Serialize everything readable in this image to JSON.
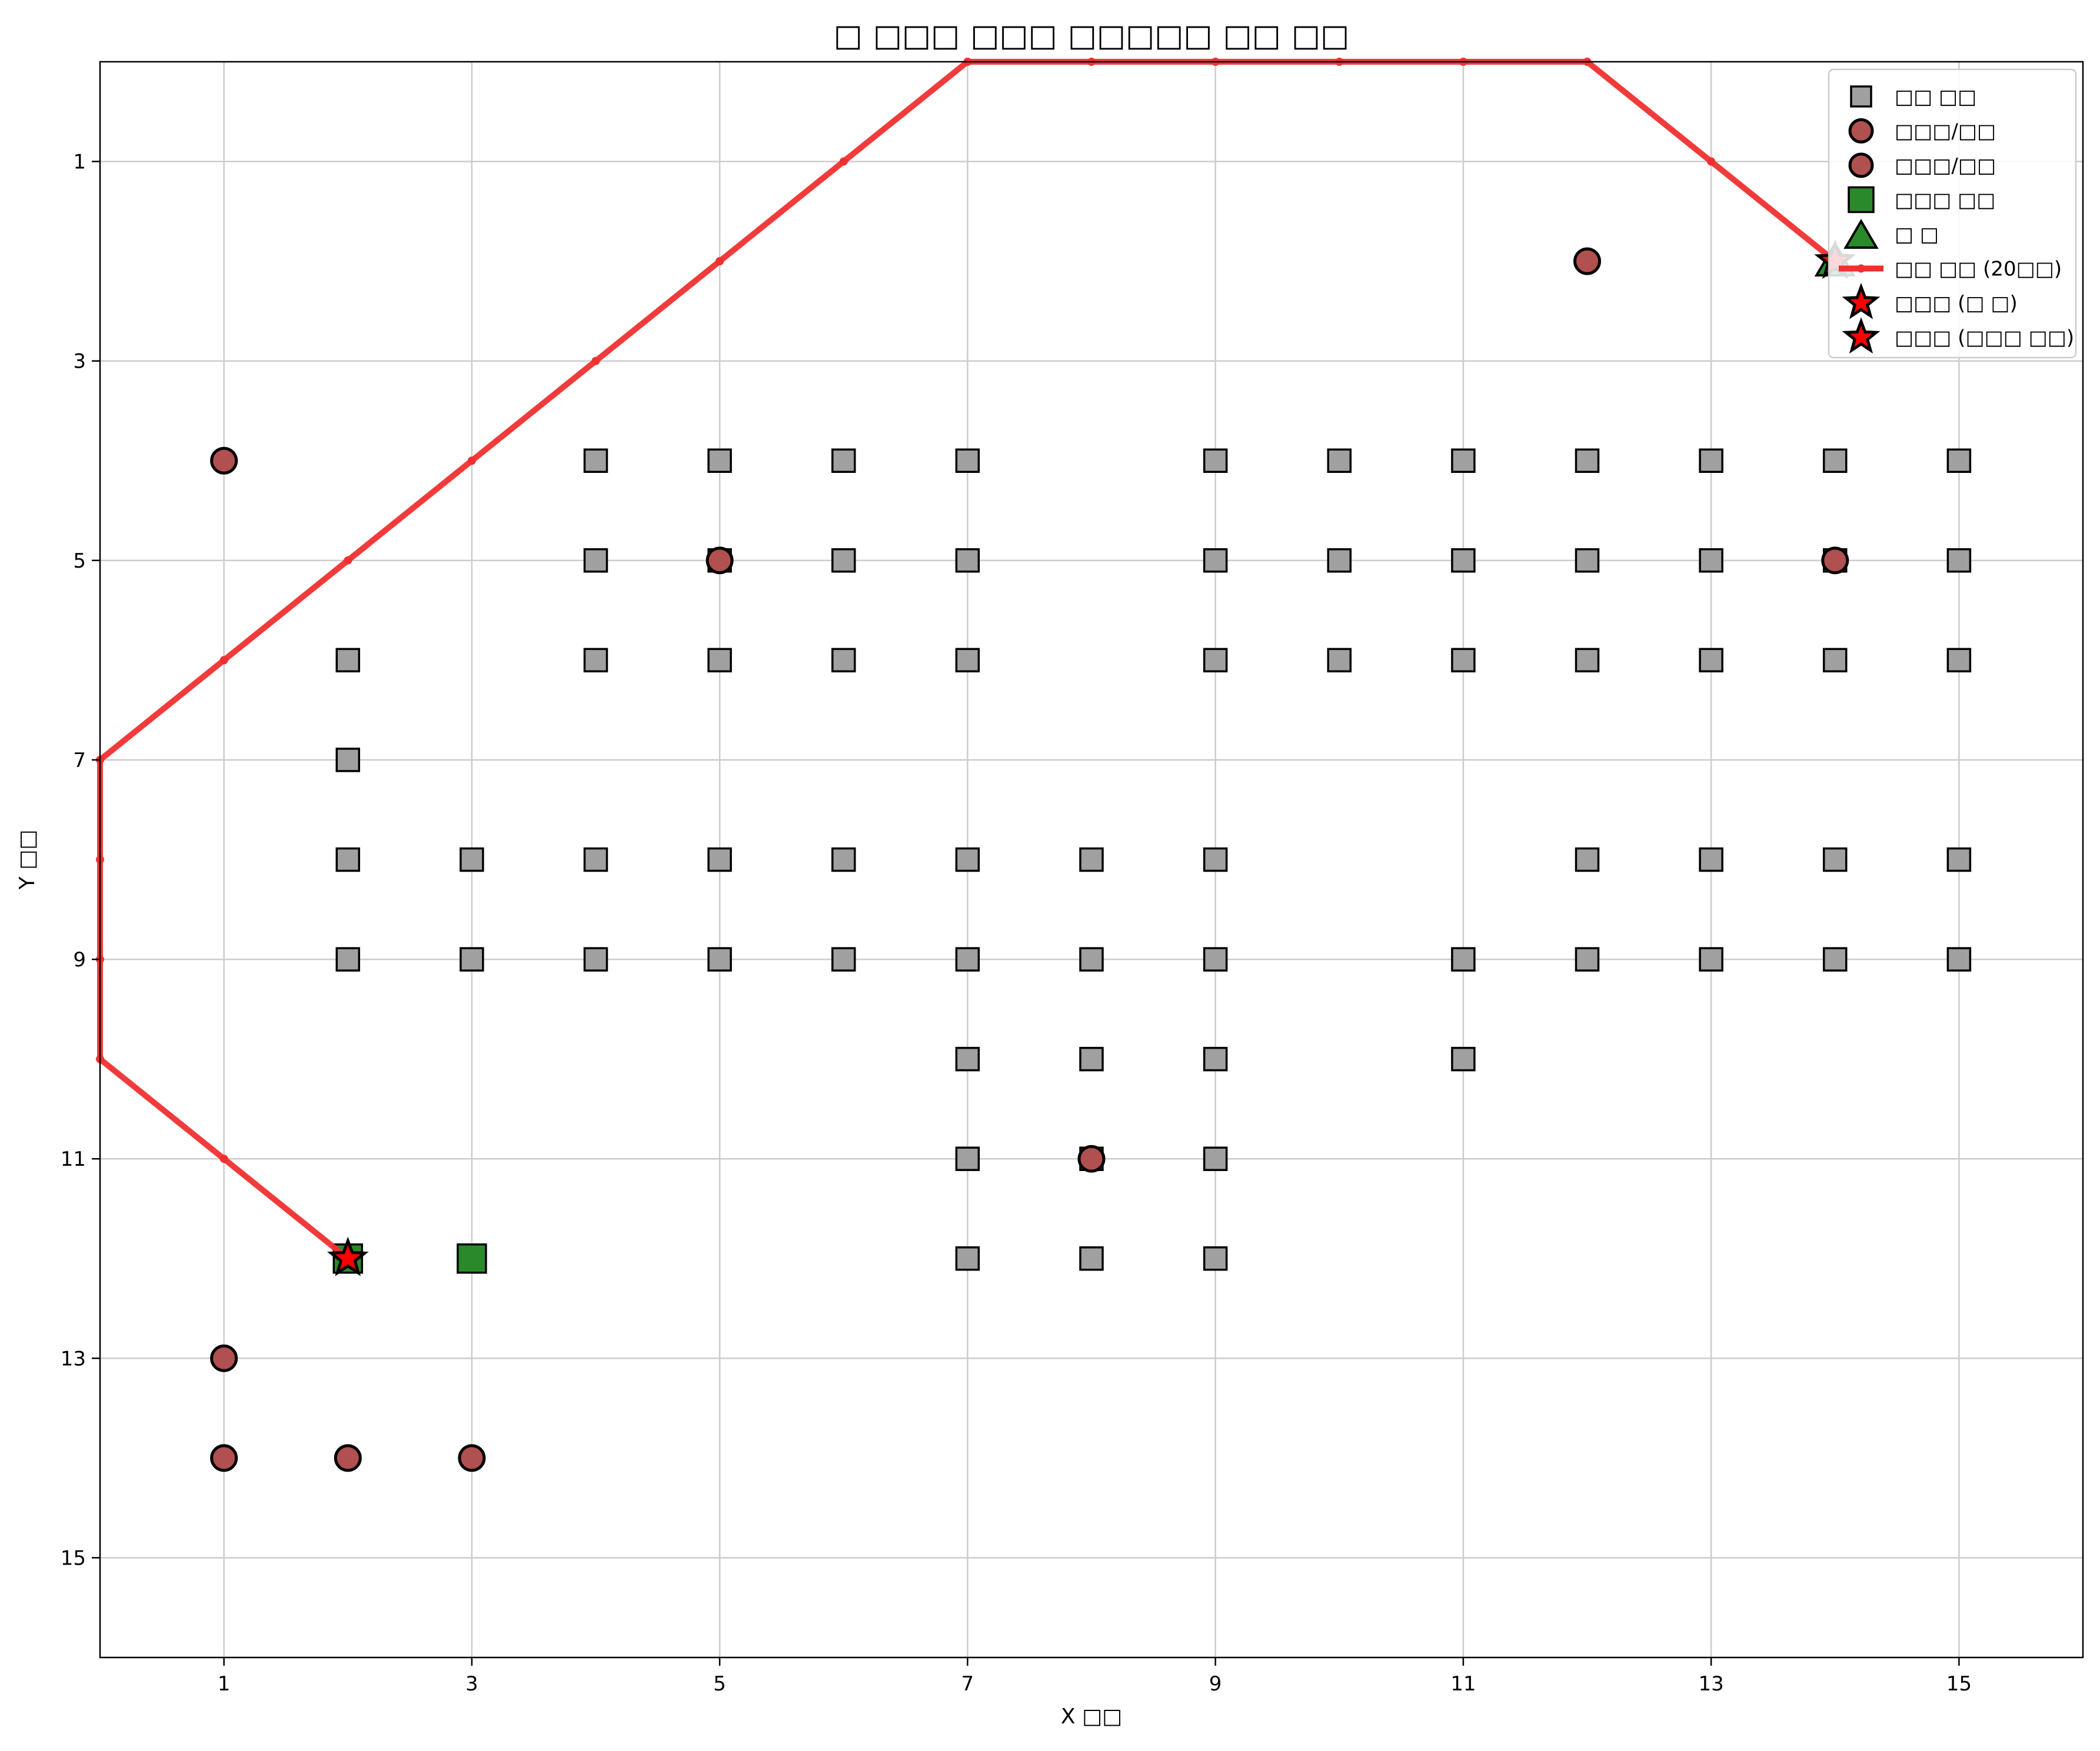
{
  "chart_data": {
    "type": "scatter",
    "title": "□ □□□ □□□ □□□□□ □□ □□",
    "xlabel": "X □□",
    "ylabel": "Y □□",
    "xlim": [
      0,
      16
    ],
    "ylim": [
      16,
      0
    ],
    "y_inverted": true,
    "xticks": [
      1,
      3,
      5,
      7,
      9,
      11,
      13,
      15
    ],
    "yticks": [
      1,
      3,
      5,
      7,
      9,
      11,
      13,
      15
    ],
    "grid": true,
    "legend_position": "top-right",
    "colors": {
      "obstacle": "#a0a0a0",
      "hazard": "#b05050",
      "start": "#2a8a2a",
      "goal": "#2a8a2a",
      "path": "#f03030",
      "star_fill": "#ff0000",
      "edge": "#000000"
    },
    "series": [
      {
        "name": "□□ □□",
        "marker": "square",
        "points": [
          [
            4,
            4
          ],
          [
            5,
            4
          ],
          [
            6,
            4
          ],
          [
            7,
            4
          ],
          [
            9,
            4
          ],
          [
            10,
            4
          ],
          [
            11,
            4
          ],
          [
            12,
            4
          ],
          [
            13,
            4
          ],
          [
            14,
            4
          ],
          [
            15,
            4
          ],
          [
            4,
            5
          ],
          [
            5,
            5
          ],
          [
            6,
            5
          ],
          [
            7,
            5
          ],
          [
            9,
            5
          ],
          [
            10,
            5
          ],
          [
            11,
            5
          ],
          [
            12,
            5
          ],
          [
            13,
            5
          ],
          [
            14,
            5
          ],
          [
            15,
            5
          ],
          [
            2,
            6
          ],
          [
            4,
            6
          ],
          [
            5,
            6
          ],
          [
            6,
            6
          ],
          [
            7,
            6
          ],
          [
            9,
            6
          ],
          [
            10,
            6
          ],
          [
            11,
            6
          ],
          [
            12,
            6
          ],
          [
            13,
            6
          ],
          [
            14,
            6
          ],
          [
            15,
            6
          ],
          [
            2,
            7
          ],
          [
            2,
            8
          ],
          [
            3,
            8
          ],
          [
            4,
            8
          ],
          [
            5,
            8
          ],
          [
            6,
            8
          ],
          [
            7,
            8
          ],
          [
            8,
            8
          ],
          [
            9,
            8
          ],
          [
            12,
            8
          ],
          [
            13,
            8
          ],
          [
            14,
            8
          ],
          [
            15,
            8
          ],
          [
            2,
            9
          ],
          [
            3,
            9
          ],
          [
            4,
            9
          ],
          [
            5,
            9
          ],
          [
            6,
            9
          ],
          [
            7,
            9
          ],
          [
            8,
            9
          ],
          [
            9,
            9
          ],
          [
            11,
            9
          ],
          [
            12,
            9
          ],
          [
            13,
            9
          ],
          [
            14,
            9
          ],
          [
            15,
            9
          ],
          [
            7,
            10
          ],
          [
            8,
            10
          ],
          [
            9,
            10
          ],
          [
            11,
            10
          ],
          [
            7,
            11
          ],
          [
            8,
            11
          ],
          [
            9,
            11
          ],
          [
            7,
            12
          ],
          [
            8,
            12
          ],
          [
            9,
            12
          ]
        ]
      },
      {
        "name": "□□□/□□",
        "marker": "circle",
        "points": [
          [
            1,
            4
          ],
          [
            5,
            5
          ],
          [
            8,
            11
          ],
          [
            1,
            13
          ],
          [
            1,
            14
          ],
          [
            2,
            14
          ],
          [
            3,
            14
          ]
        ]
      },
      {
        "name": "□□□/□□",
        "marker": "circle",
        "points": [
          [
            12,
            2
          ],
          [
            14,
            5
          ]
        ]
      },
      {
        "name": "□□□ □□",
        "marker": "square-large",
        "points": [
          [
            3,
            12
          ],
          [
            2,
            12
          ]
        ]
      },
      {
        "name": "□ □",
        "marker": "triangle",
        "points": [
          [
            14,
            2
          ]
        ]
      },
      {
        "name": "□□ □□ (20□□)",
        "marker": "line",
        "points": [
          [
            2,
            12
          ],
          [
            1,
            11
          ],
          [
            0,
            10
          ],
          [
            0,
            9
          ],
          [
            0,
            8
          ],
          [
            0,
            7
          ],
          [
            1,
            6
          ],
          [
            2,
            5
          ],
          [
            3,
            4
          ],
          [
            4,
            3
          ],
          [
            5,
            2
          ],
          [
            6,
            1
          ],
          [
            7,
            0
          ],
          [
            8,
            0
          ],
          [
            9,
            0
          ],
          [
            10,
            0
          ],
          [
            11,
            0
          ],
          [
            12,
            0
          ],
          [
            13,
            1
          ],
          [
            14,
            2
          ]
        ]
      },
      {
        "name": "□□□ (□ □)",
        "marker": "star",
        "points": [
          [
            14,
            2
          ]
        ]
      },
      {
        "name": "□□□ (□□□ □□)",
        "marker": "star",
        "points": [
          [
            2,
            12
          ]
        ]
      }
    ]
  }
}
